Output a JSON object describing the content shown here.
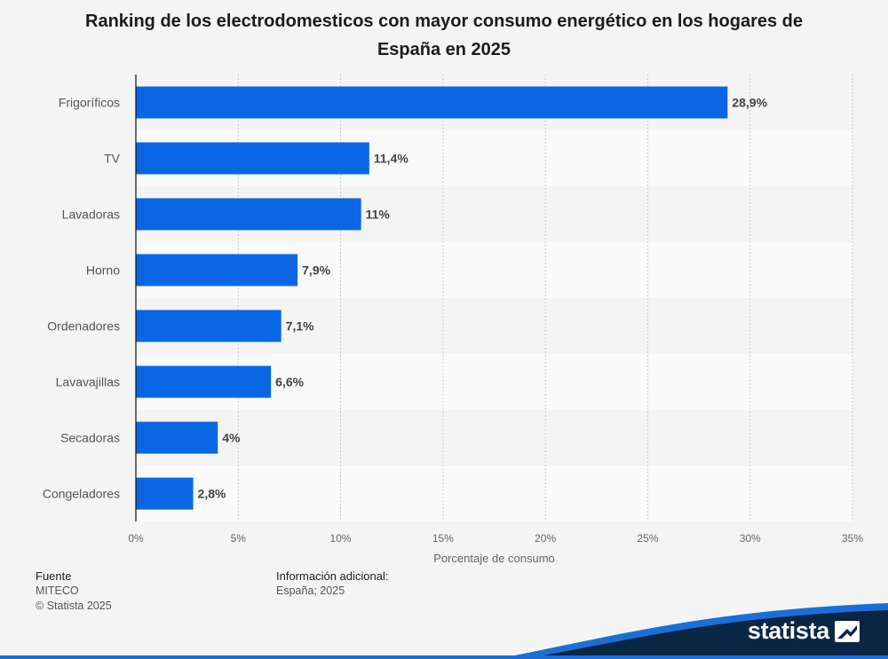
{
  "chart_data": {
    "type": "bar",
    "orientation": "horizontal",
    "title": "Ranking de los electrodomesticos con mayor consumo energético en los hogares de España en 2025",
    "xlabel": "Porcentaje de consumo",
    "ylabel": "",
    "categories": [
      "Frigoríficos",
      "TV",
      "Lavadoras",
      "Horno",
      "Ordenadores",
      "Lavavajillas",
      "Secadoras",
      "Congeladores"
    ],
    "values": [
      28.9,
      11.4,
      11,
      7.9,
      7.1,
      6.6,
      4,
      2.8
    ],
    "value_labels": [
      "28,9%",
      "11,4%",
      "11%",
      "7,9%",
      "7,1%",
      "6,6%",
      "4%",
      "2,8%"
    ],
    "xlim": [
      0,
      35
    ],
    "ticks": [
      0,
      5,
      10,
      15,
      20,
      25,
      30,
      35
    ],
    "tick_labels": [
      "0%",
      "5%",
      "10%",
      "15%",
      "20%",
      "25%",
      "30%",
      "35%"
    ],
    "grid": true,
    "legend": "none",
    "bar_color": "#0b66e4"
  },
  "footer": {
    "source_heading": "Fuente",
    "source": "MITECO",
    "copyright": "© Statista 2025",
    "info_heading": "Información adicional:",
    "info": "España; 2025"
  },
  "brand": {
    "name": "statista",
    "band_color": "#0b2545",
    "accent_color": "#1a6fd6"
  }
}
